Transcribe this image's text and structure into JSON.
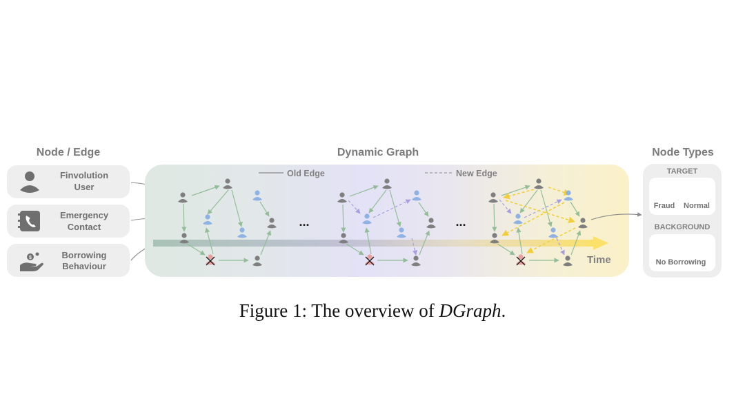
{
  "left_panel": {
    "title": "Node / Edge",
    "items": [
      {
        "icon": "user-icon",
        "line1": "Finvolution",
        "line2": "User"
      },
      {
        "icon": "phone-book-icon",
        "line1": "Emergency",
        "line2": "Contact"
      },
      {
        "icon": "hand-money-icon",
        "line1": "Borrowing",
        "line2": "Behaviour"
      }
    ]
  },
  "center_panel": {
    "title": "Dynamic Graph",
    "old_edge_label": "Old Edge",
    "new_edge_label": "New Edge",
    "ellipsis": "...",
    "time_label": "Time"
  },
  "right_panel": {
    "title": "Node Types",
    "target_label": "TARGET",
    "fraud_label": "Fraud",
    "normal_label": "Normal",
    "background_label": "BACKGROUND",
    "no_borrowing_label": "No Borrowing"
  },
  "caption": {
    "prefix": "Figure 1: The overview of ",
    "name": "DGraph",
    "suffix": "."
  },
  "colors": {
    "gray_node": "#7f7f7f",
    "normal_node": "#8fb2e4",
    "fraud_node": "#e9a0a0",
    "old_edge": "#93bd99",
    "new_edge_purple": "#a69ee0",
    "new_edge_yellow": "#f2cf3a"
  }
}
